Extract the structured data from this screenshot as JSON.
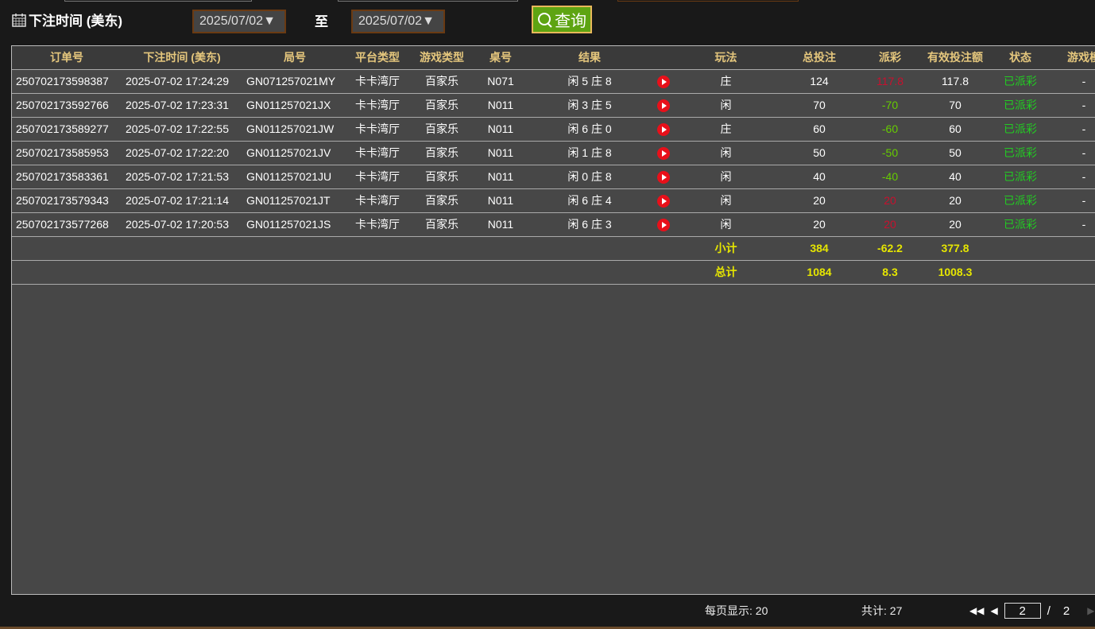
{
  "filter": {
    "label": "下注时间 (美东)",
    "start_date": "2025/07/02▼",
    "to_label": "至",
    "end_date": "2025/07/02▼",
    "query_label": "查询"
  },
  "table": {
    "headers": [
      "订单号",
      "下注时间 (美东)",
      "局号",
      "平台类型",
      "游戏类型",
      "桌号",
      "结果",
      "",
      "玩法",
      "总投注",
      "派彩",
      "有效投注额",
      "状态",
      "游戏模"
    ],
    "rows": [
      [
        "250702173598387",
        "2025-07-02 17:24:29",
        "GN071257021MY",
        "卡卡湾厅",
        "百家乐",
        "N071",
        "闲 5 庄 8",
        "",
        "庄",
        "124",
        "117.8",
        "117.8",
        "已派彩",
        "-"
      ],
      [
        "250702173592766",
        "2025-07-02 17:23:31",
        "GN011257021JX",
        "卡卡湾厅",
        "百家乐",
        "N011",
        "闲 3 庄 5",
        "",
        "闲",
        "70",
        "-70",
        "70",
        "已派彩",
        "-"
      ],
      [
        "250702173589277",
        "2025-07-02 17:22:55",
        "GN011257021JW",
        "卡卡湾厅",
        "百家乐",
        "N011",
        "闲 6 庄 0",
        "",
        "庄",
        "60",
        "-60",
        "60",
        "已派彩",
        "-"
      ],
      [
        "250702173585953",
        "2025-07-02 17:22:20",
        "GN011257021JV",
        "卡卡湾厅",
        "百家乐",
        "N011",
        "闲 1 庄 8",
        "",
        "闲",
        "50",
        "-50",
        "50",
        "已派彩",
        "-"
      ],
      [
        "250702173583361",
        "2025-07-02 17:21:53",
        "GN011257021JU",
        "卡卡湾厅",
        "百家乐",
        "N011",
        "闲 0 庄 8",
        "",
        "闲",
        "40",
        "-40",
        "40",
        "已派彩",
        "-"
      ],
      [
        "250702173579343",
        "2025-07-02 17:21:14",
        "GN011257021JT",
        "卡卡湾厅",
        "百家乐",
        "N011",
        "闲 6 庄 4",
        "",
        "闲",
        "20",
        "20",
        "20",
        "已派彩",
        "-"
      ],
      [
        "250702173577268",
        "2025-07-02 17:20:53",
        "GN011257021JS",
        "卡卡湾厅",
        "百家乐",
        "N011",
        "闲 6 庄 3",
        "",
        "闲",
        "20",
        "20",
        "20",
        "已派彩",
        "-"
      ]
    ],
    "payout_colors": [
      "red",
      "green",
      "green",
      "green",
      "green",
      "red",
      "red"
    ],
    "subtotal": {
      "label": "小计",
      "total_bet": "384",
      "payout": "-62.2",
      "valid_bet": "377.8"
    },
    "grand_total": {
      "label": "总计",
      "total_bet": "1084",
      "payout": "8.3",
      "valid_bet": "1008.3"
    }
  },
  "footer": {
    "per_page": "每页显示: 20",
    "total": "共计: 27",
    "current_page": "2",
    "separator": "/",
    "total_pages": "2"
  },
  "colors": {
    "header_text": "#e5c77d",
    "payout_win": "#c8102e",
    "payout_loss": "#66cc00",
    "status": "#22cc22",
    "totals": "#e6e600",
    "query_button": "#5ea412"
  },
  "icons": {
    "calendar": "calendar-icon",
    "video": "play-video-icon",
    "search": "search-icon"
  }
}
